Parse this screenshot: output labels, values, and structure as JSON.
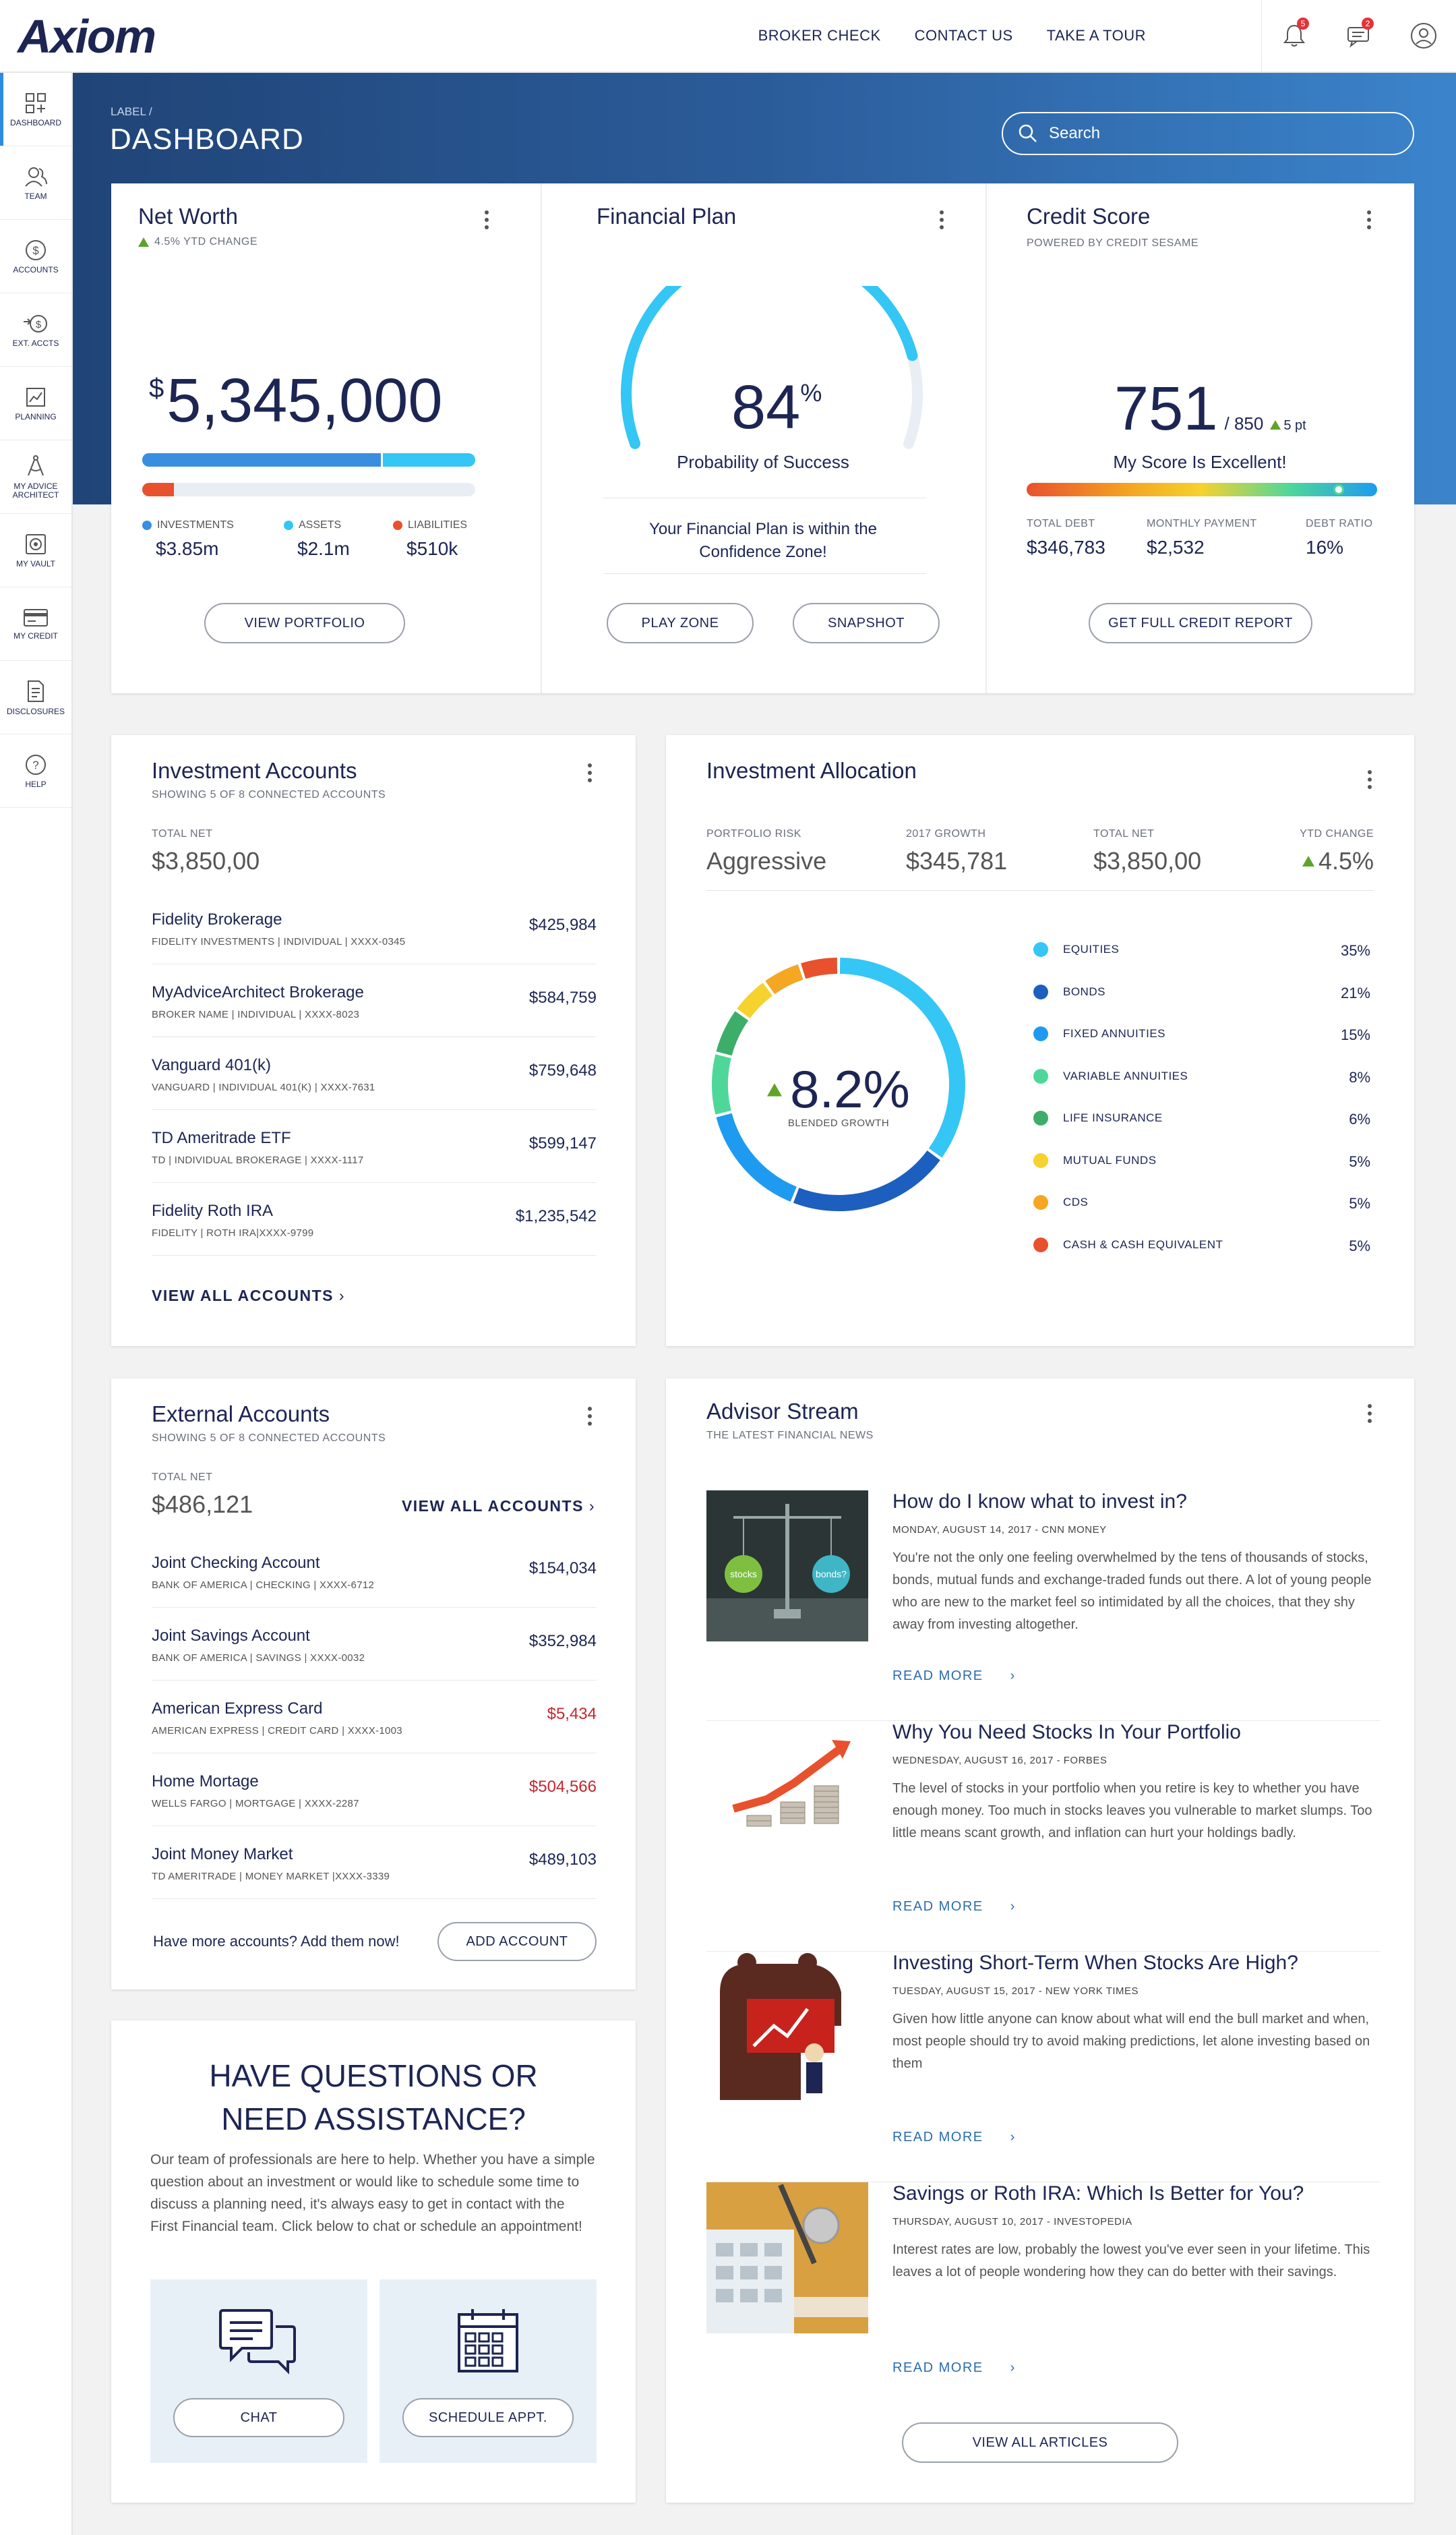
{
  "brand": {
    "logo": "Axiom"
  },
  "topnav": {
    "broker_check": "BROKER CHECK",
    "contact_us": "CONTACT US",
    "take_tour": "TAKE A TOUR",
    "bell_count": "5",
    "msg_count": "2"
  },
  "sidebar": {
    "items": [
      {
        "label": "DASHBOARD",
        "icon": "dashboard-icon"
      },
      {
        "label": "TEAM",
        "icon": "team-icon"
      },
      {
        "label": "ACCOUNTS",
        "icon": "accounts-icon"
      },
      {
        "label": "EXT. ACCTS",
        "icon": "external-accounts-icon"
      },
      {
        "label": "PLANNING",
        "icon": "planning-icon"
      },
      {
        "label": "MY ADVICE ARCHITECT",
        "icon": "advice-architect-icon"
      },
      {
        "label": "MY VAULT",
        "icon": "vault-icon"
      },
      {
        "label": "MY CREDIT",
        "icon": "credit-icon"
      },
      {
        "label": "DISCLOSURES",
        "icon": "disclosures-icon"
      },
      {
        "label": "HELP",
        "icon": "help-icon"
      }
    ]
  },
  "header": {
    "breadcrumb": "LABEL  /",
    "title": "DASHBOARD",
    "search_placeholder": "Search"
  },
  "net_worth": {
    "title": "Net Worth",
    "ytd": "4.5% YTD CHANGE",
    "currency": "$",
    "value": "5,345,000",
    "legend": [
      {
        "label": "INVESTMENTS",
        "value": "$3.85m",
        "color": "#3a8ee0"
      },
      {
        "label": "ASSETS",
        "value": "$2.1m",
        "color": "#34c6f4"
      },
      {
        "label": "LIABILITIES",
        "value": "$510k",
        "color": "#e8512d"
      }
    ],
    "investments_share": 0.722,
    "liabilities_share": 0.095,
    "button": "VIEW PORTFOLIO"
  },
  "financial_plan": {
    "title": "Financial Plan",
    "percent": "84",
    "percent_sign": "%",
    "probability": 0.84,
    "caption": "Probability of Success",
    "message_line1": "Your Financial Plan is within the",
    "message_line2": "Confidence Zone!",
    "btn_play": "PLAY ZONE",
    "btn_snapshot": "SNAPSHOT"
  },
  "credit_score": {
    "title": "Credit Score",
    "powered": "POWERED BY CREDIT SESAME",
    "score": "751",
    "max": "/ 850",
    "change": "5 pt",
    "score_fraction": 0.89,
    "status": "My Score Is Excellent!",
    "stats": [
      {
        "label": "TOTAL DEBT",
        "value": "$346,783"
      },
      {
        "label": "MONTHLY PAYMENT",
        "value": "$2,532"
      },
      {
        "label": "DEBT RATIO",
        "value": "16%"
      }
    ],
    "button": "GET FULL CREDIT REPORT"
  },
  "investment_accounts": {
    "title": "Investment Accounts",
    "subtitle": "SHOWING 5 OF 8 CONNECTED ACCOUNTS",
    "total_label": "TOTAL NET",
    "total": "$3,850,00",
    "rows": [
      {
        "name": "Fidelity Brokerage",
        "meta": "FIDELITY INVESTMENTS | INDIVIDUAL | XXXX-0345",
        "amount": "$425,984"
      },
      {
        "name": "MyAdviceArchitect Brokerage",
        "meta": "BROKER NAME | INDIVIDUAL | XXXX-8023",
        "amount": "$584,759"
      },
      {
        "name": "Vanguard 401(k)",
        "meta": "VANGUARD | INDIVIDUAL 401(K) | XXXX-7631",
        "amount": "$759,648"
      },
      {
        "name": "TD Ameritrade ETF",
        "meta": "TD | INDIVIDUAL BROKERAGE | XXXX-1117",
        "amount": "$599,147"
      },
      {
        "name": "Fidelity Roth IRA",
        "meta": "FIDELITY | ROTH IRA|XXXX-9799",
        "amount": "$1,235,542"
      }
    ],
    "view_all": "VIEW ALL ACCOUNTS"
  },
  "investment_allocation": {
    "title": "Investment Allocation",
    "stats": [
      {
        "label": "PORTFOLIO RISK",
        "value": "Aggressive"
      },
      {
        "label": "2017 GROWTH",
        "value": "$345,781"
      },
      {
        "label": "TOTAL NET",
        "value": "$3,850,00"
      },
      {
        "label": "YTD CHANGE",
        "value": "4.5%"
      }
    ],
    "center_value": "8.2%",
    "center_label": "BLENDED GROWTH"
  },
  "chart_data": {
    "type": "pie",
    "categories": [
      "EQUITIES",
      "BONDS",
      "FIXED ANNUITIES",
      "VARIABLE ANNUITIES",
      "LIFE INSURANCE",
      "MUTUAL FUNDS",
      "CDS",
      "CASH & CASH EQUIVALENT"
    ],
    "values": [
      35,
      21,
      15,
      8,
      6,
      5,
      5,
      5
    ],
    "labels": [
      "35%",
      "21%",
      "15%",
      "8%",
      "6%",
      "5%",
      "5%",
      "5%"
    ],
    "colors": [
      "#34c6f4",
      "#1c5fbf",
      "#1e9bf0",
      "#4fd79a",
      "#3cae6a",
      "#f5d22e",
      "#f5a623",
      "#e8512d"
    ]
  },
  "external_accounts": {
    "title": "External Accounts",
    "subtitle": "SHOWING 5 OF 8 CONNECTED ACCOUNTS",
    "total_label": "TOTAL NET",
    "total": "$486,121",
    "view_all": "VIEW ALL ACCOUNTS",
    "rows": [
      {
        "name": "Joint Checking Account",
        "meta": "BANK OF AMERICA | CHECKING | XXXX-6712",
        "amount": "$154,034"
      },
      {
        "name": "Joint Savings Account",
        "meta": "BANK OF AMERICA | SAVINGS | XXXX-0032",
        "amount": "$352,984"
      },
      {
        "name": "American Express Card",
        "meta": "AMERICAN EXPRESS | CREDIT CARD | XXXX-1003",
        "amount": "$5,434"
      },
      {
        "name": "Home Mortage",
        "meta": "WELLS FARGO | MORTGAGE | XXXX-2287",
        "amount": "$504,566"
      },
      {
        "name": "Joint Money Market",
        "meta": "TD AMERITRADE | MONEY MARKET |XXXX-3339",
        "amount": "$489,103"
      }
    ],
    "add_prompt": "Have more accounts? Add them now!",
    "add_button": "ADD ACCOUNT"
  },
  "help": {
    "title_line1": "HAVE QUESTIONS OR",
    "title_line2": "NEED ASSISTANCE?",
    "body": "Our team of professionals are here to help. Whether you have a simple question about an investment or would like to schedule some time to discuss a planning need, it's always easy to get in contact with the First Financial team. Click below to chat or schedule an appointment!",
    "chat": "CHAT",
    "schedule": "SCHEDULE APPT."
  },
  "advisor_stream": {
    "title": "Advisor Stream",
    "subtitle": "THE LATEST FINANCIAL NEWS",
    "scale_left": "stocks",
    "scale_right": "bonds?",
    "articles": [
      {
        "title": "How do I know what to invest in?",
        "meta": "MONDAY, AUGUST 14, 2017 - CNN MONEY",
        "body": "You're not the only one feeling overwhelmed by the tens of thousands of stocks, bonds, mutual funds and exchange-traded funds out there. A lot of young people who are new to the market feel so intimidated by all the choices, that they shy away from investing altogether.",
        "more": "READ MORE"
      },
      {
        "title": "Why You Need Stocks In Your Portfolio",
        "meta": "WEDNESDAY, AUGUST 16, 2017 - FORBES",
        "body": "The level of stocks in your portfolio when you retire is key to whether you have enough money. Too much in stocks leaves you vulnerable to market slumps. Too little means scant growth, and inflation can hurt your holdings badly.",
        "more": "READ MORE"
      },
      {
        "title": "Investing Short-Term When Stocks Are High?",
        "meta": "TUESDAY, AUGUST 15, 2017 - NEW YORK TIMES",
        "body": "Given how little anyone can know about what will end the bull market and when, most people should try to avoid making predictions, let alone investing based on them",
        "more": "READ MORE"
      },
      {
        "title": "Savings or Roth IRA: Which Is Better for You?",
        "meta": "THURSDAY, AUGUST 10, 2017 - INVESTOPEDIA",
        "body": "Interest rates are low, probably the lowest you've ever seen in your lifetime. This leaves a lot of people wondering how they can do better with their savings.",
        "more": "READ MORE"
      }
    ],
    "view_all": "VIEW ALL ARTICLES"
  }
}
